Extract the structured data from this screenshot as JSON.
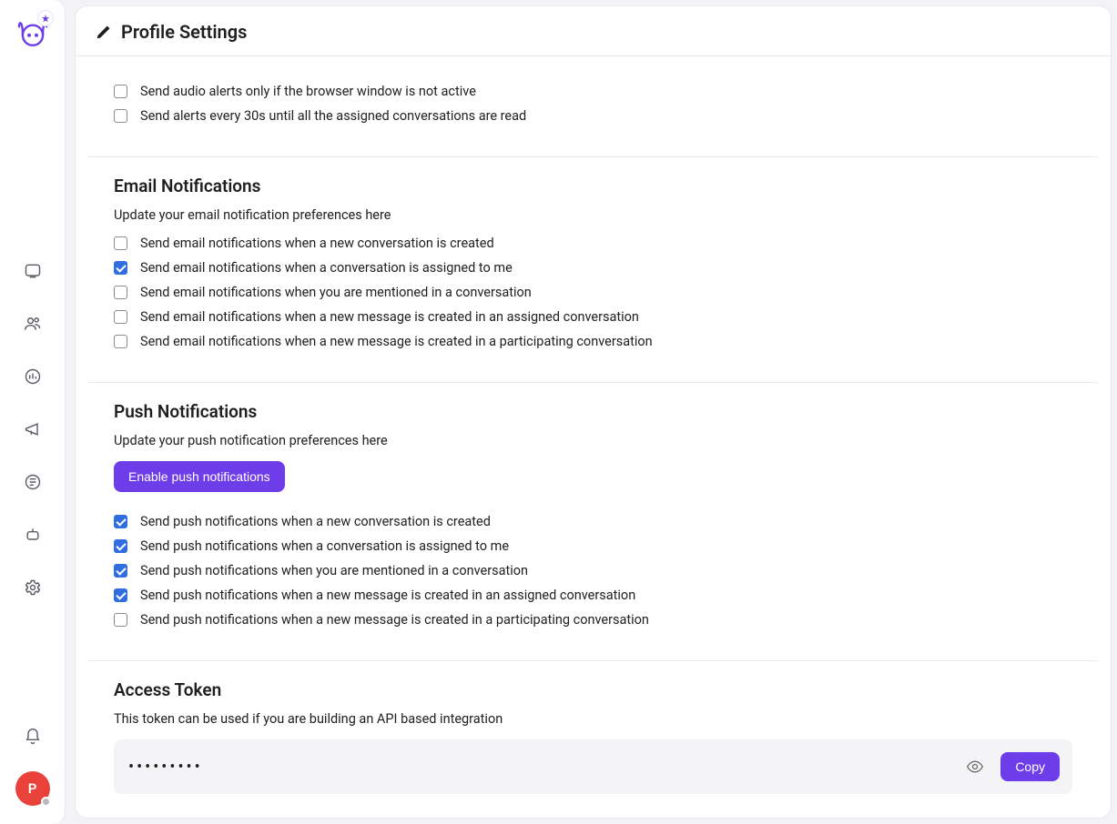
{
  "colors": {
    "accent": "#6e3dea",
    "text": "#1f1f1f",
    "muted": "#6b6b6b",
    "border": "#e8e8ef",
    "background": "#f3f3f5",
    "panel": "#ffffff",
    "checkbox_checked": "#2f6de0",
    "avatar_bg": "#e8423a",
    "token_bg": "#f4f4f6",
    "presence_dot": "#b8b8c0"
  },
  "header": {
    "title": "Profile Settings"
  },
  "sidebar": {
    "avatar_initial": "P",
    "nav_icons": [
      "conversations-icon",
      "contacts-icon",
      "reports-icon",
      "campaigns-icon",
      "help-center-icon",
      "bot-icon",
      "settings-icon"
    ]
  },
  "audio_section": {
    "items": [
      {
        "label": "Send audio alerts only if the browser window is not active",
        "checked": false
      },
      {
        "label": "Send alerts every 30s until all the assigned conversations are read",
        "checked": false
      }
    ]
  },
  "email_section": {
    "title": "Email Notifications",
    "desc": "Update your email notification preferences here",
    "items": [
      {
        "label": "Send email notifications when a new conversation is created",
        "checked": false
      },
      {
        "label": "Send email notifications when a conversation is assigned to me",
        "checked": true
      },
      {
        "label": "Send email notifications when you are mentioned in a conversation",
        "checked": false
      },
      {
        "label": "Send email notifications when a new message is created in an assigned conversation",
        "checked": false
      },
      {
        "label": "Send email notifications when a new message is created in a participating conversation",
        "checked": false
      }
    ]
  },
  "push_section": {
    "title": "Push Notifications",
    "desc": "Update your push notification preferences here",
    "enable_button": "Enable push notifications",
    "items": [
      {
        "label": "Send push notifications when a new conversation is created",
        "checked": true
      },
      {
        "label": "Send push notifications when a conversation is assigned to me",
        "checked": true
      },
      {
        "label": "Send push notifications when you are mentioned in a conversation",
        "checked": true
      },
      {
        "label": "Send push notifications when a new message is created in an assigned conversation",
        "checked": true
      },
      {
        "label": "Send push notifications when a new message is created in a participating conversation",
        "checked": false
      }
    ]
  },
  "token_section": {
    "title": "Access Token",
    "desc": "This token can be used if you are building an API based integration",
    "masked_value": "•••••••••",
    "copy_label": "Copy"
  }
}
